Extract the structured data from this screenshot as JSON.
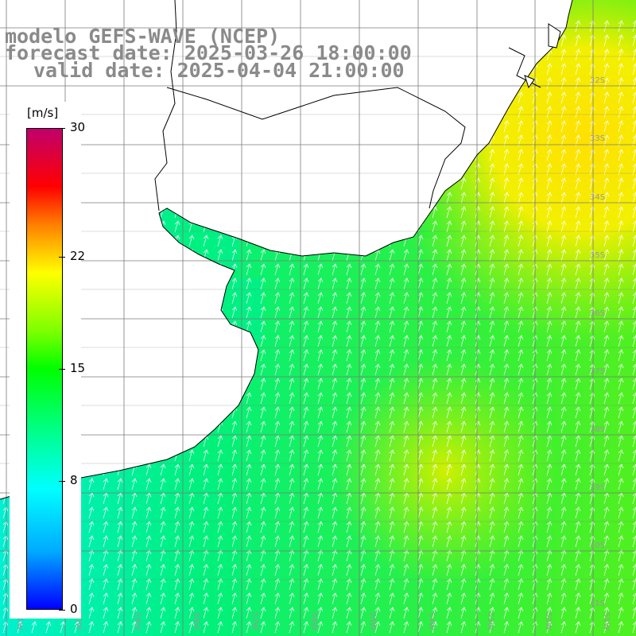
{
  "title": {
    "line1": "modelo GEFS-WAVE (NCEP)",
    "line2": "forecast date: 2025-03-26 18:00:00",
    "line3": "valid date: 2025-04-04 21:00:00"
  },
  "legend": {
    "units": "[m/s]",
    "ticks": [
      {
        "label": "30",
        "value": 30
      },
      {
        "label": "22",
        "value": 22
      },
      {
        "label": "15",
        "value": 15
      },
      {
        "label": "8",
        "value": 8
      },
      {
        "label": "0",
        "value": 0
      }
    ],
    "range": [
      0,
      30
    ]
  },
  "map": {
    "lat_labels": [
      "32S",
      "33S",
      "34S",
      "35S",
      "36S",
      "37S",
      "38S",
      "39S",
      "40S",
      "41S"
    ],
    "lon_labels": [
      "61W",
      "60W",
      "59W",
      "58W",
      "57W",
      "56W",
      "55W",
      "54W",
      "53W",
      "52W",
      "51W"
    ],
    "colors": {
      "land": "#ffffff",
      "coast": "#000000",
      "grid": "#7a7a7a",
      "arrows": "#ffffff"
    }
  }
}
